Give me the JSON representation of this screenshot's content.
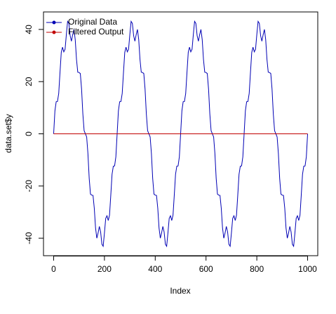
{
  "chart_data": {
    "type": "line",
    "xlabel": "Index",
    "ylabel": "data.set$y",
    "x": [
      0,
      5,
      10,
      15,
      20,
      25,
      30,
      35,
      40,
      45,
      50,
      55,
      60,
      65,
      70,
      75,
      80,
      85,
      90,
      95,
      100,
      105,
      110,
      115,
      120,
      125,
      130,
      135,
      140,
      145,
      150,
      155,
      160,
      165,
      170,
      175,
      180,
      185,
      190,
      195,
      200,
      205,
      210,
      215,
      220,
      225,
      230,
      235,
      240,
      245,
      250,
      255,
      260,
      265,
      270,
      275,
      280,
      285,
      290,
      295,
      300,
      305,
      310,
      315,
      320,
      325,
      330,
      335,
      340,
      345,
      350,
      355,
      360,
      365,
      370,
      375,
      380,
      385,
      390,
      395,
      400,
      405,
      410,
      415,
      420,
      425,
      430,
      435,
      440,
      445,
      450,
      455,
      460,
      465,
      470,
      475,
      480,
      485,
      490,
      495,
      500,
      505,
      510,
      515,
      520,
      525,
      530,
      535,
      540,
      545,
      550,
      555,
      560,
      565,
      570,
      575,
      580,
      585,
      590,
      595,
      600,
      605,
      610,
      615,
      620,
      625,
      630,
      635,
      640,
      645,
      650,
      655,
      660,
      665,
      670,
      675,
      680,
      685,
      690,
      695,
      700,
      705,
      710,
      715,
      720,
      725,
      730,
      735,
      740,
      745,
      750,
      755,
      760,
      765,
      770,
      775,
      780,
      785,
      790,
      795,
      800,
      805,
      810,
      815,
      820,
      825,
      830,
      835,
      840,
      845,
      850,
      855,
      860,
      865,
      870,
      875,
      880,
      885,
      890,
      895,
      900,
      905,
      910,
      915,
      920,
      925,
      930,
      935,
      940,
      945,
      950,
      955,
      960,
      965,
      970,
      975,
      980,
      985,
      990,
      995,
      1000
    ],
    "series": [
      {
        "name": "Original Data",
        "color": "#0000b4",
        "values": [
          0,
          8.8,
          12.3,
          12.4,
          15.5,
          23.5,
          31.2,
          33.2,
          31.4,
          32.4,
          38,
          43.1,
          42.3,
          37.6,
          35.5,
          38,
          40,
          36.1,
          28.5,
          23.6,
          23.5,
          23.1,
          17.1,
          7.6,
          1.2,
          0,
          -1.2,
          -7.6,
          -17.1,
          -23.1,
          -23.5,
          -23.6,
          -28.5,
          -36.1,
          -40,
          -38,
          -35.5,
          -37.6,
          -42.3,
          -43.1,
          -38,
          -32.4,
          -31.4,
          -33.2,
          -31.2,
          -23.5,
          -15.5,
          -12.4,
          -12.3,
          -8.8,
          0,
          8.8,
          12.3,
          12.4,
          15.5,
          23.5,
          31.2,
          33.2,
          31.4,
          32.4,
          38,
          43.1,
          42.3,
          37.6,
          35.5,
          38,
          40,
          36.1,
          28.5,
          23.6,
          23.5,
          23.1,
          17.1,
          7.6,
          1.2,
          0,
          -1.2,
          -7.6,
          -17.1,
          -23.1,
          -23.5,
          -23.6,
          -28.5,
          -36.1,
          -40,
          -38,
          -35.5,
          -37.6,
          -42.3,
          -43.1,
          -38,
          -32.4,
          -31.4,
          -33.2,
          -31.2,
          -23.5,
          -15.5,
          -12.4,
          -12.3,
          -8.8,
          0,
          8.8,
          12.3,
          12.4,
          15.5,
          23.5,
          31.2,
          33.2,
          31.4,
          32.4,
          38,
          43.1,
          42.3,
          37.6,
          35.5,
          38,
          40,
          36.1,
          28.5,
          23.6,
          23.5,
          23.1,
          17.1,
          7.6,
          1.2,
          0,
          -1.2,
          -7.6,
          -17.1,
          -23.1,
          -23.5,
          -23.6,
          -28.5,
          -36.1,
          -40,
          -38,
          -35.5,
          -37.6,
          -42.3,
          -43.1,
          -38,
          -32.4,
          -31.4,
          -33.2,
          -31.2,
          -23.5,
          -15.5,
          -12.4,
          -12.3,
          -8.8,
          0,
          8.8,
          12.3,
          12.4,
          15.5,
          23.5,
          31.2,
          33.2,
          31.4,
          32.4,
          38,
          43.1,
          42.3,
          37.6,
          35.5,
          38,
          40,
          36.1,
          28.5,
          23.6,
          23.5,
          23.1,
          17.1,
          7.6,
          1.2,
          0,
          -1.2,
          -7.6,
          -17.1,
          -23.1,
          -23.5,
          -23.6,
          -28.5,
          -36.1,
          -40,
          -38,
          -35.5,
          -37.6,
          -42.3,
          -43.1,
          -38,
          -32.4,
          -31.4,
          -33.2,
          -31.2,
          -23.5,
          -15.5,
          -12.4,
          -12.3,
          -8.8,
          0
        ]
      },
      {
        "name": "Filtered Output",
        "color": "#c00000",
        "x": [
          0,
          1000
        ],
        "values": [
          0,
          0
        ]
      }
    ],
    "xlim": [
      -40,
      1040
    ],
    "ylim": [
      -46.7,
      46.7
    ],
    "xticks": [
      0,
      200,
      400,
      600,
      800,
      1000
    ],
    "yticks": [
      -40,
      -20,
      0,
      20,
      40
    ],
    "legend": "top-left"
  }
}
